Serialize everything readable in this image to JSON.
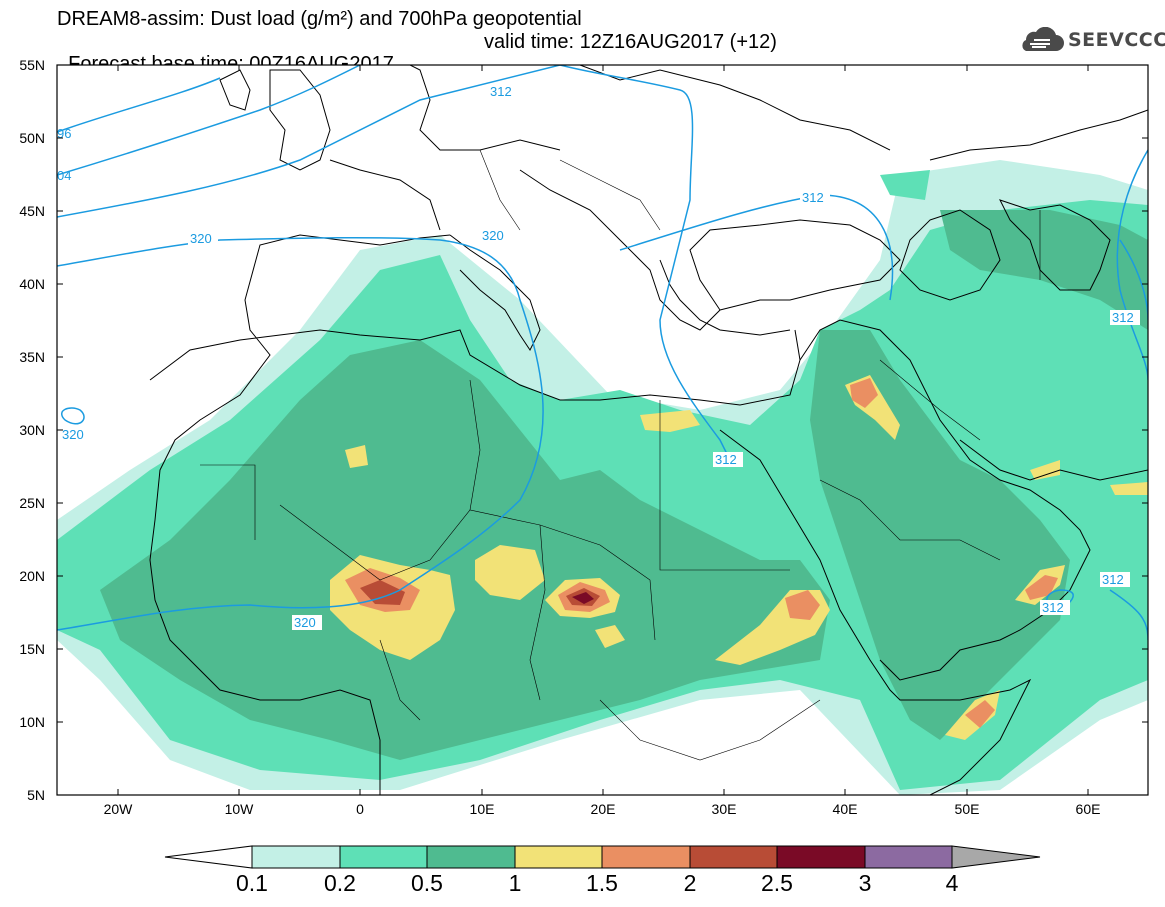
{
  "header": {
    "line1": "DREAM8-assim: Dust load (g/m²) and 700hPa geopotential",
    "line2_left": "Forecast base time: 00Z16AUG2017",
    "line2_right": "valid time: 12Z16AUG2017 (+12)"
  },
  "logo": {
    "text": "SEEVCCC",
    "icon": "cloud-icon"
  },
  "map": {
    "extent": {
      "lon_min": -25,
      "lon_max": 65,
      "lat_min": 5,
      "lat_max": 55
    },
    "lat_labels": [
      "55N",
      "50N",
      "45N",
      "40N",
      "35N",
      "30N",
      "25N",
      "20N",
      "15N",
      "10N",
      "5N"
    ],
    "lon_labels": [
      "20W",
      "10W",
      "0",
      "10E",
      "20E",
      "30E",
      "40E",
      "50E",
      "60E"
    ],
    "contour_color": "#1b9be0",
    "contour_labels": [
      "312",
      "312",
      "312",
      "312",
      "312",
      "312",
      "320",
      "320",
      "320",
      "320",
      "96",
      "04"
    ]
  },
  "colorbar": {
    "labels": [
      "0.1",
      "0.2",
      "0.5",
      "1",
      "1.5",
      "2",
      "2.5",
      "3",
      "4"
    ],
    "colors": [
      "#c3f0e6",
      "#5ee0b6",
      "#4fbb90",
      "#f2e277",
      "#ea8f62",
      "#b84c36",
      "#7a0a26",
      "#8c6aa1",
      "#a8a8a8"
    ]
  }
}
